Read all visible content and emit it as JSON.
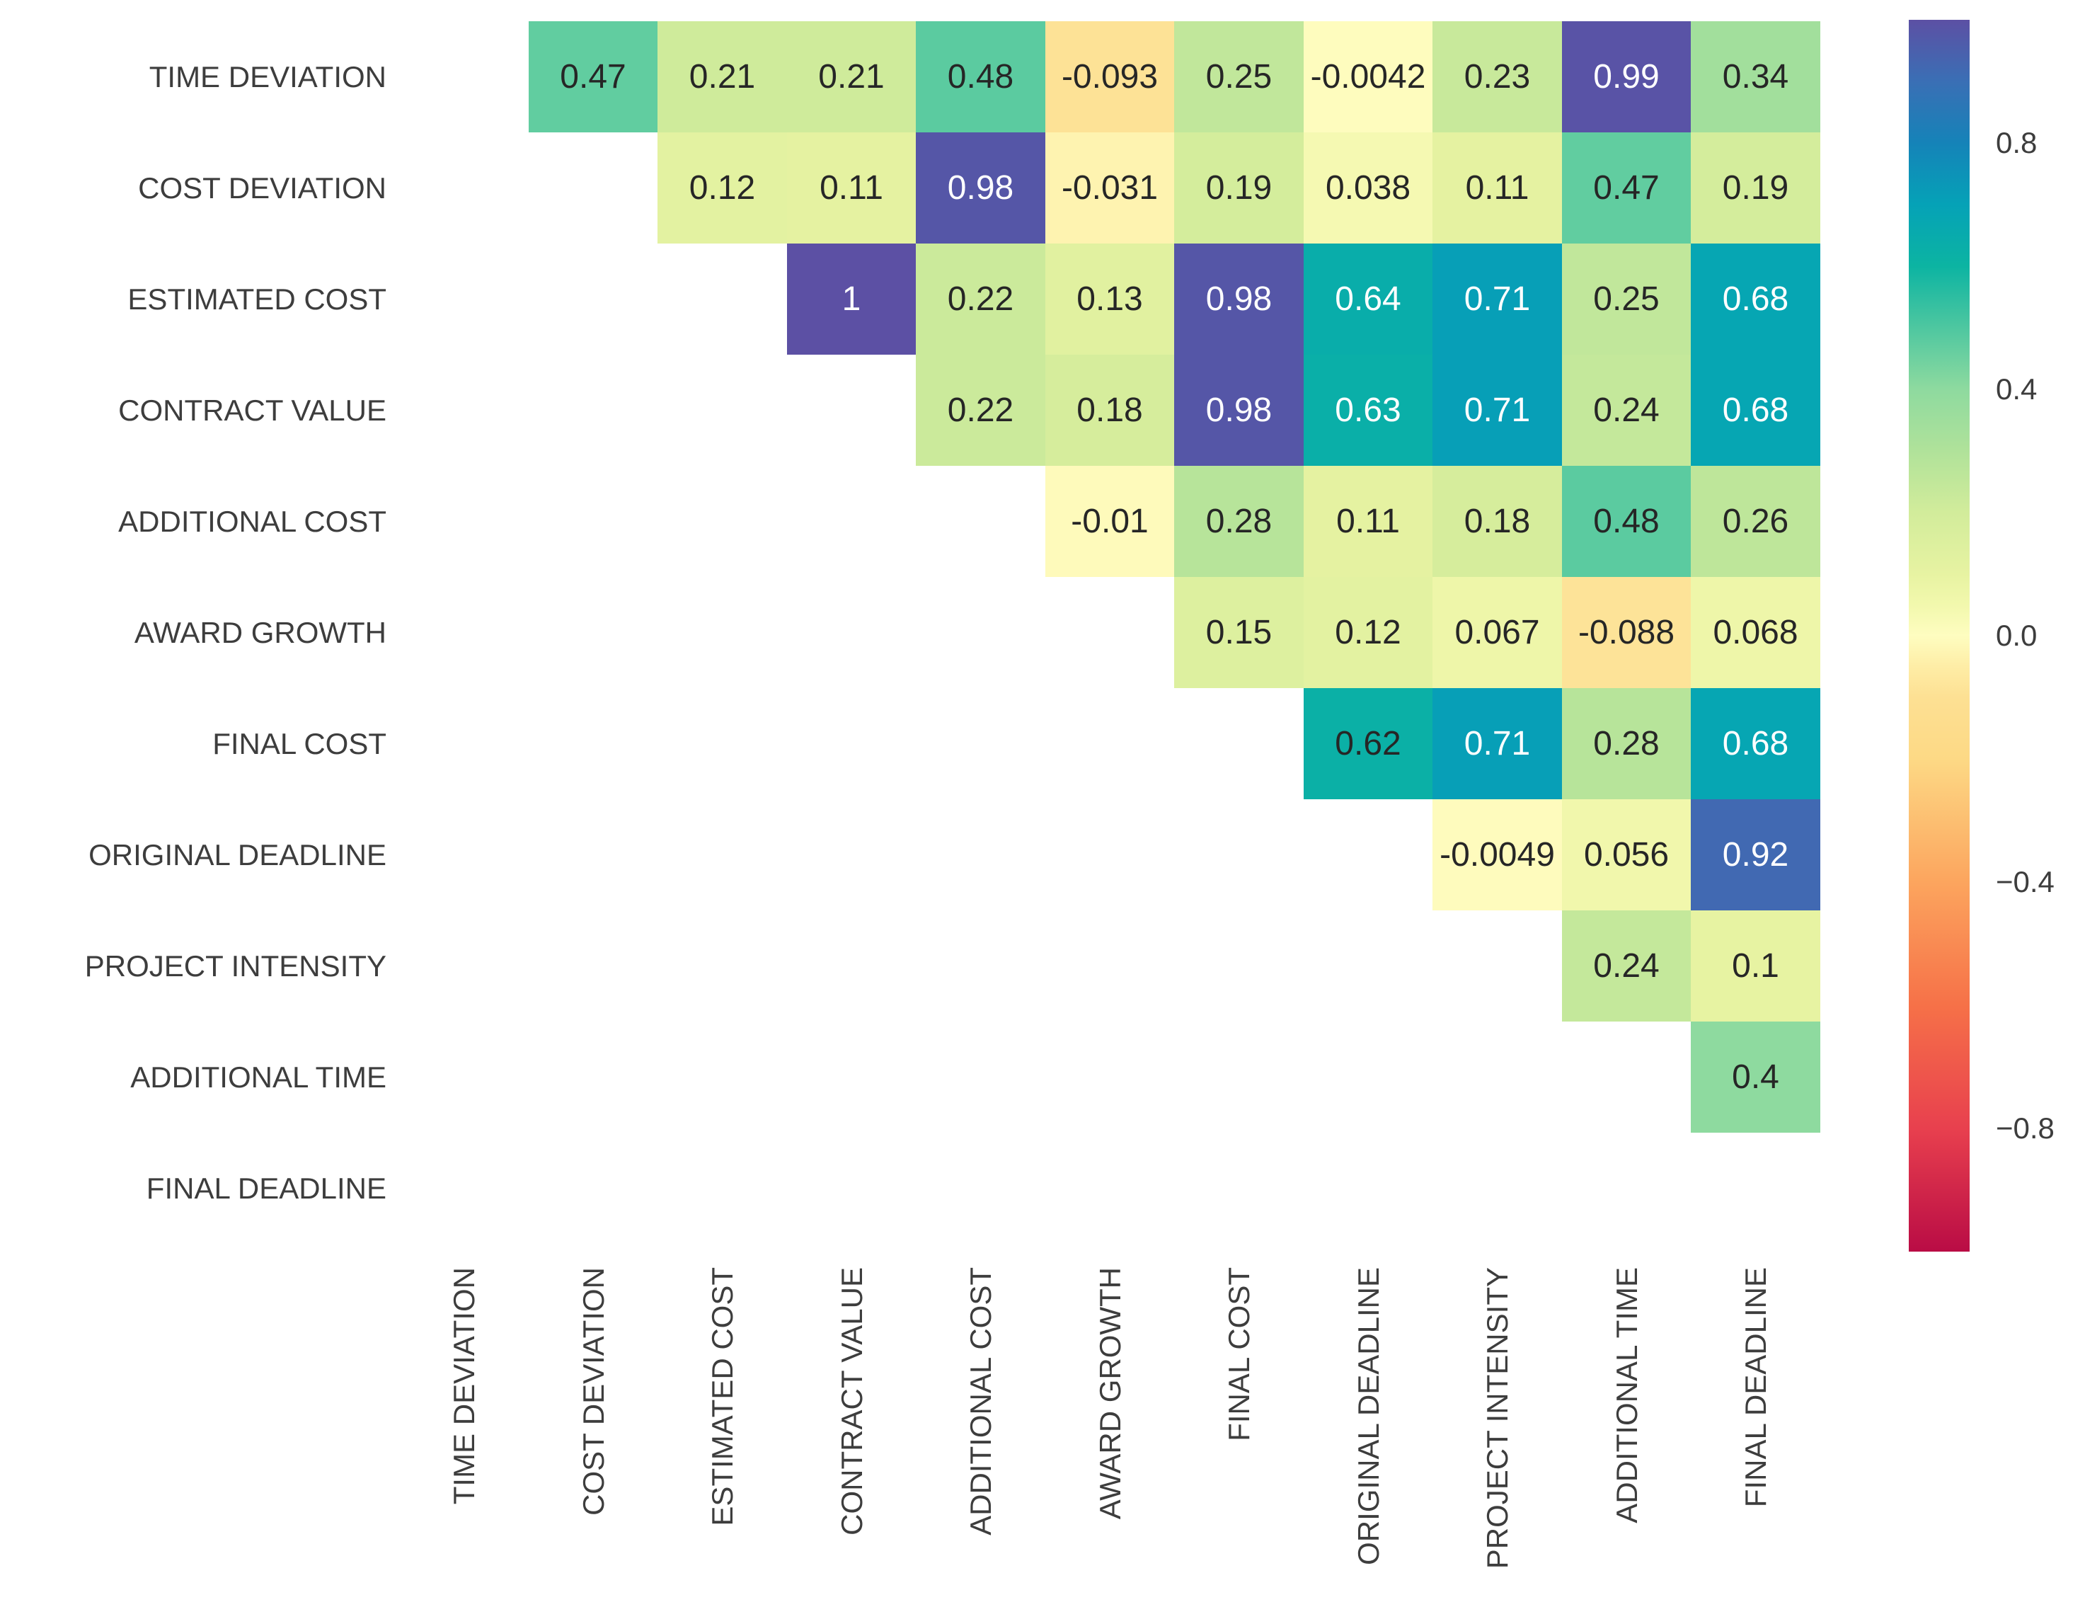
{
  "chart_data": {
    "type": "heatmap",
    "title": "",
    "xlabel": "",
    "ylabel": "",
    "legend_position": "right-colorbar",
    "grid": false,
    "mask": "lower-triangle-and-diagonal-hidden",
    "variables": [
      "TIME DEVIATION",
      "COST DEVIATION",
      "ESTIMATED COST",
      "CONTRACT VALUE",
      "ADDITIONAL COST",
      "AWARD GROWTH",
      "FINAL COST",
      "ORIGINAL DEADLINE",
      "PROJECT INTENSITY",
      "ADDITIONAL TIME",
      "FINAL DEADLINE"
    ],
    "cell_values": [
      [
        null,
        "0.47",
        "0.21",
        "0.21",
        "0.48",
        "-0.093",
        "0.25",
        "-0.0042",
        "0.23",
        "0.99",
        "0.34"
      ],
      [
        null,
        null,
        "0.12",
        "0.11",
        "0.98",
        "-0.031",
        "0.19",
        "0.038",
        "0.11",
        "0.47",
        "0.19"
      ],
      [
        null,
        null,
        null,
        "1",
        "0.22",
        "0.13",
        "0.98",
        "0.64",
        "0.71",
        "0.25",
        "0.68"
      ],
      [
        null,
        null,
        null,
        null,
        "0.22",
        "0.18",
        "0.98",
        "0.63",
        "0.71",
        "0.24",
        "0.68"
      ],
      [
        null,
        null,
        null,
        null,
        null,
        "-0.01",
        "0.28",
        "0.11",
        "0.18",
        "0.48",
        "0.26"
      ],
      [
        null,
        null,
        null,
        null,
        null,
        null,
        "0.15",
        "0.12",
        "0.067",
        "-0.088",
        "0.068"
      ],
      [
        null,
        null,
        null,
        null,
        null,
        null,
        null,
        "0.62",
        "0.71",
        "0.28",
        "0.68"
      ],
      [
        null,
        null,
        null,
        null,
        null,
        null,
        null,
        null,
        "-0.0049",
        "0.056",
        "0.92"
      ],
      [
        null,
        null,
        null,
        null,
        null,
        null,
        null,
        null,
        null,
        "0.24",
        "0.1"
      ],
      [
        null,
        null,
        null,
        null,
        null,
        null,
        null,
        null,
        null,
        null,
        "0.4"
      ],
      [
        null,
        null,
        null,
        null,
        null,
        null,
        null,
        null,
        null,
        null,
        null
      ]
    ],
    "value_range": [
      -1,
      1
    ],
    "colorbar_ticks": [
      {
        "label": "0.8",
        "value": 0.8
      },
      {
        "label": "0.4",
        "value": 0.4
      },
      {
        "label": "0.0",
        "value": 0.0
      },
      {
        "label": "−0.4",
        "value": -0.4
      },
      {
        "label": "−0.8",
        "value": -0.8
      }
    ],
    "colormap_stops": [
      {
        "v": -1.0,
        "c": "#b90c45"
      },
      {
        "v": -0.8,
        "c": "#e8404e"
      },
      {
        "v": -0.6,
        "c": "#f67148"
      },
      {
        "v": -0.4,
        "c": "#fca55e"
      },
      {
        "v": -0.2,
        "c": "#fdd985"
      },
      {
        "v": -0.1,
        "c": "#fde093"
      },
      {
        "v": -0.05,
        "c": "#feeda6"
      },
      {
        "v": 0.0,
        "c": "#fefdc0"
      },
      {
        "v": 0.05,
        "c": "#f2f8ad"
      },
      {
        "v": 0.1,
        "c": "#e7f3a2"
      },
      {
        "v": 0.2,
        "c": "#d2ec9b"
      },
      {
        "v": 0.3,
        "c": "#b0e29a"
      },
      {
        "v": 0.4,
        "c": "#8eda9f"
      },
      {
        "v": 0.5,
        "c": "#4ec7a0"
      },
      {
        "v": 0.6,
        "c": "#0cb4a2"
      },
      {
        "v": 0.7,
        "c": "#05a2b7"
      },
      {
        "v": 0.8,
        "c": "#1583b8"
      },
      {
        "v": 0.9,
        "c": "#3a6fb5"
      },
      {
        "v": 1.0,
        "c": "#5c50a4"
      }
    ],
    "annotation_text_colors": {
      "dark": "#262626",
      "light": "#ffffff"
    },
    "background_color": "#ffffff"
  }
}
